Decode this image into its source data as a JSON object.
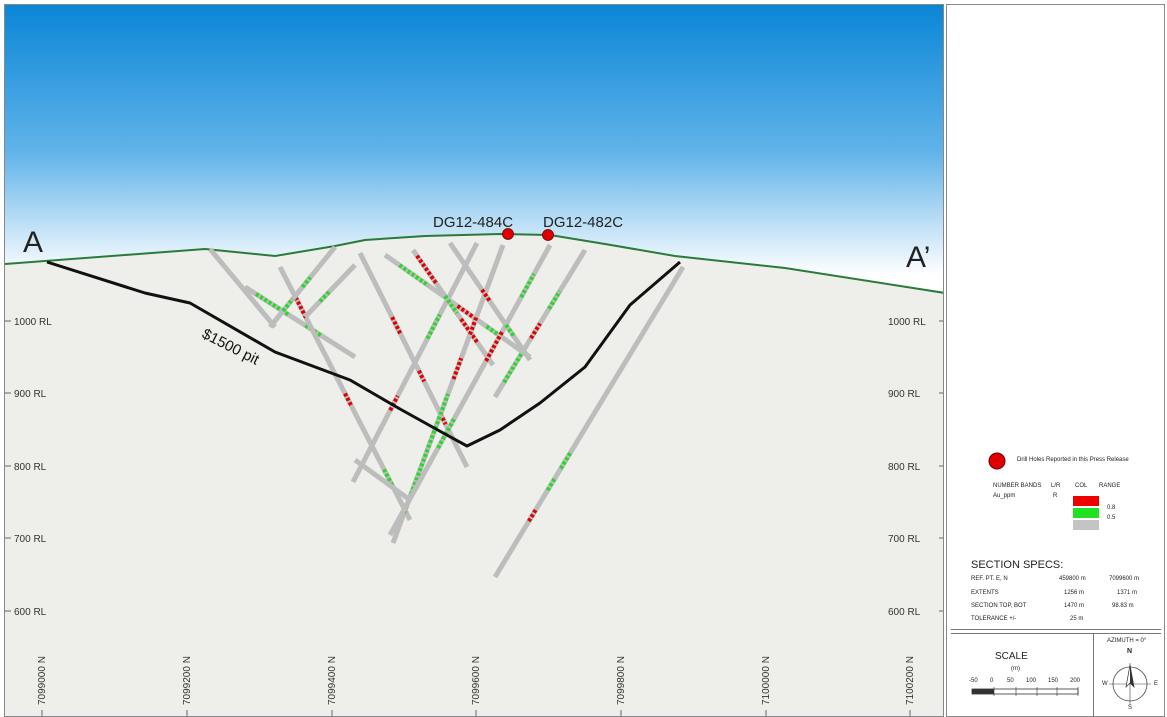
{
  "section": {
    "start_label": "A",
    "end_label": "A’",
    "colors": {
      "sky_top": "#0a86d6",
      "sky_bottom": "#ffffff",
      "ground": "#eeeeea",
      "topography": "#2a7a3a",
      "pit_shell": "#111111",
      "drill_trace": "#bdbdbd",
      "collar": "#e10000"
    },
    "pit_label": "$1500 pit",
    "reported_holes": [
      "DG12-484C",
      "DG12-482C"
    ],
    "elevation_labels_left": [
      "1000 RL",
      "900 RL",
      "800 RL",
      "700 RL",
      "600 RL"
    ],
    "elevation_labels_right": [
      "1000 RL",
      "900 RL",
      "800 RL",
      "700 RL",
      "600 RL"
    ],
    "northing_labels": [
      "7099000 N",
      "7099200 N",
      "7099400 N",
      "7099600 N",
      "7099800 N",
      "7100000 N",
      "7100200 N"
    ]
  },
  "legend": {
    "reported_label": "Drill Holes Reported in this Press Release",
    "number_bands_label": "NUMBER BANDS",
    "lr_header": "L/R",
    "col_header": "COL",
    "range_header": "RANGE",
    "variable": "Au_ppm",
    "lr_value": "R",
    "bands": [
      {
        "color": "#ee0000",
        "range": ""
      },
      {
        "color": "#22e022",
        "range": "0.8"
      },
      {
        "color": "#c4c4c4",
        "range": "0.5"
      }
    ]
  },
  "specs": {
    "title": "SECTION SPECS:",
    "rows": [
      {
        "label": "REF. PT.  E, N",
        "v1": "459800 m",
        "v2": "7099600 m"
      },
      {
        "label": "EXTENTS",
        "v1": "1256 m",
        "v2": "1371 m"
      },
      {
        "label": "SECTION TOP, BOT",
        "v1": "1470 m",
        "v2": "98.83 m"
      },
      {
        "label": "TOLERANCE  +/-",
        "v1": "25 m",
        "v2": ""
      }
    ]
  },
  "scale": {
    "title": "SCALE",
    "unit": "(m)",
    "ticks": [
      "-50",
      "0",
      "50",
      "100",
      "150",
      "200"
    ]
  },
  "compass": {
    "azimuth": "AZIMUTH = 0°",
    "n": "N",
    "s": "S",
    "e": "E",
    "w": "W"
  }
}
